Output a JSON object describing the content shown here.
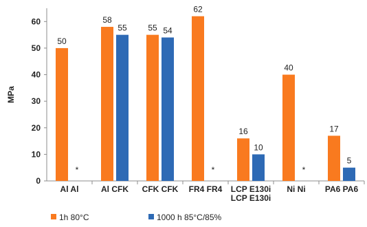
{
  "chart_data": {
    "type": "bar",
    "categories": [
      [
        "Al Al"
      ],
      [
        "Al CFK"
      ],
      [
        "CFK CFK"
      ],
      [
        "FR4 FR4"
      ],
      [
        "LCP E130i",
        "LCP E130i"
      ],
      [
        "Ni Ni"
      ],
      [
        "PA6 PA6"
      ]
    ],
    "series": [
      {
        "name": "1h 80°C",
        "color": "#f97a1f",
        "values": [
          50,
          58,
          55,
          62,
          16,
          40,
          17
        ]
      },
      {
        "name": "1000 h 85°C/85%",
        "color": "#2e6ab5",
        "values": [
          null,
          55,
          54,
          null,
          10,
          null,
          5
        ]
      }
    ],
    "missing_marker": "*",
    "ylabel": "MPa",
    "ylim": [
      0,
      65
    ],
    "yticks": [
      0,
      10,
      20,
      30,
      40,
      50,
      60
    ],
    "grid": false,
    "legend_position": "bottom-left"
  }
}
